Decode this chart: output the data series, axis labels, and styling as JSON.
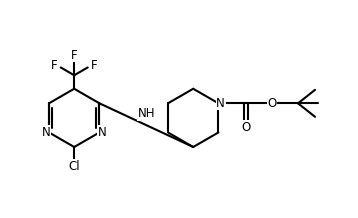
{
  "bg_color": "white",
  "line_color": "black",
  "text_color": "black",
  "line_width": 1.5,
  "font_size": 8.5,
  "figsize": [
    3.58,
    2.18
  ],
  "dpi": 100,
  "xlim": [
    0,
    10
  ],
  "ylim": [
    0,
    6
  ]
}
